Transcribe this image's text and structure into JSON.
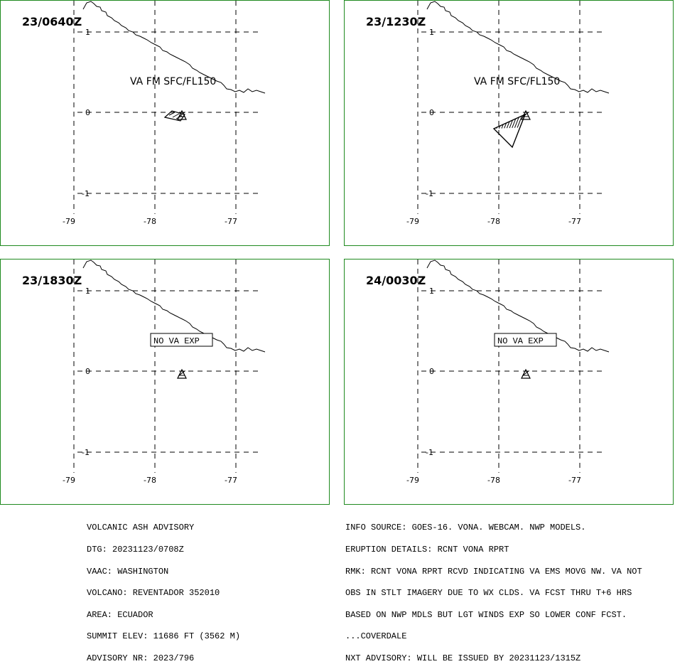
{
  "panels": [
    {
      "time": "23/0640Z",
      "label": "VA FM SFC/FL150",
      "no_va": "",
      "ash_type": "small"
    },
    {
      "time": "23/1230Z",
      "label": "VA FM SFC/FL150",
      "no_va": "",
      "ash_type": "large"
    },
    {
      "time": "23/1830Z",
      "label": "",
      "no_va": "NO  VA  EXP",
      "ash_type": "none"
    },
    {
      "time": "24/0030Z",
      "label": "",
      "no_va": "NO  VA  EXP",
      "ash_type": "none"
    }
  ],
  "lat_labels": [
    "1",
    "0",
    "-1"
  ],
  "lon_labels": [
    "-79",
    "-78",
    "-77"
  ],
  "left_text": [
    "VOLCANIC ASH ADVISORY",
    "DTG: 20231123/0708Z",
    "VAAC: WASHINGTON",
    "VOLCANO: REVENTADOR 352010",
    "AREA: ECUADOR",
    "SUMMIT ELEV: 11686 FT (3562 M)",
    "ADVISORY NR: 2023/796"
  ],
  "right_text": [
    "INFO SOURCE: GOES-16. VONA. WEBCAM. NWP MODELS.",
    "ERUPTION DETAILS: RCNT VONA RPRT",
    "RMK: RCNT VONA RPRT RCVD INDICATING VA EMS MOVG NW. VA NOT",
    "OBS IN STLT IMAGERY DUE TO WX CLDS. VA FCST THRU T+6 HRS",
    "BASED ON NWP MDLS BUT LGT WINDS EXP SO LOWER CONF FCST.",
    "...COVERDALE",
    "NXT ADVISORY: WILL BE ISSUED BY 20231123/1315Z"
  ]
}
